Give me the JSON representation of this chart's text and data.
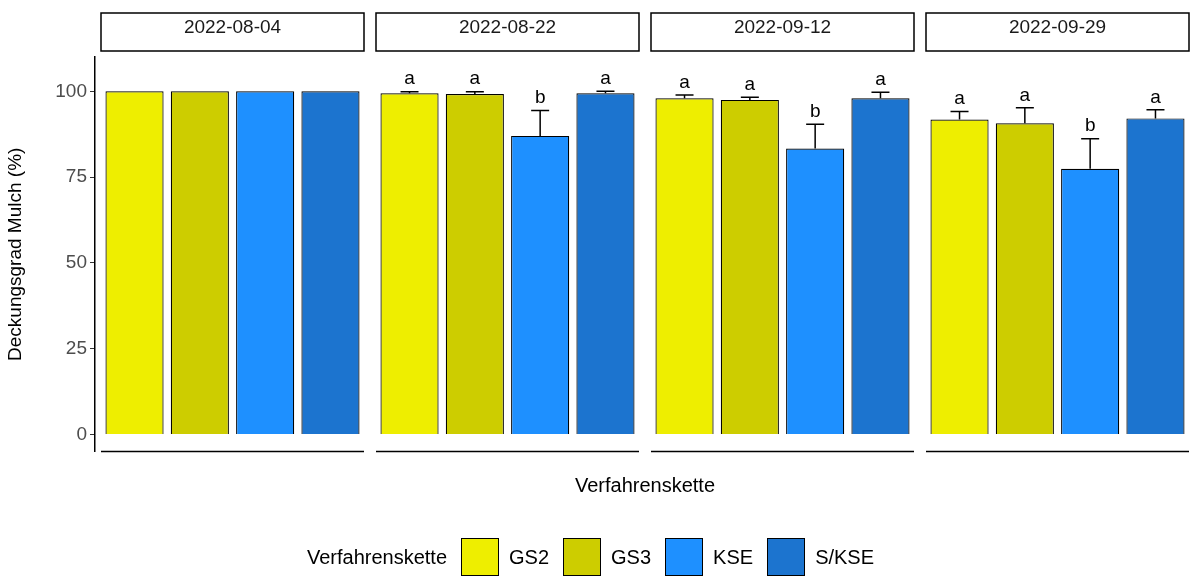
{
  "chart_data": {
    "type": "bar",
    "ylabel": "Deckungsgrad Mulch (%)",
    "xlabel": "Verfahrenskette",
    "legend": "bottom",
    "legend_title": "Verfahrenskette",
    "categories": [
      "2022-08-04",
      "2022-08-22",
      "2022-09-12",
      "2022-09-29"
    ],
    "ylim": [
      -5,
      110
    ],
    "yticks": [
      0,
      25,
      50,
      75,
      100
    ],
    "series": [
      {
        "name": "GS2",
        "color": "#eeee00",
        "values": [
          100,
          99.4,
          98.0,
          91.8
        ],
        "errors": [
          null,
          0.5,
          0.9,
          2.3
        ],
        "value_labels": [
          null,
          "a",
          "a",
          "a"
        ]
      },
      {
        "name": "GS3",
        "color": "#cdcd00",
        "values": [
          100,
          99.2,
          97.5,
          90.7
        ],
        "errors": [
          null,
          0.7,
          0.8,
          4.5
        ],
        "value_labels": [
          null,
          "a",
          "a",
          "a"
        ]
      },
      {
        "name": "KSE",
        "color": "#1e90ff",
        "values": [
          100,
          87.0,
          83.3,
          77.4
        ],
        "errors": [
          null,
          7.4,
          7.1,
          8.8
        ],
        "value_labels": [
          null,
          "b",
          "b",
          "b"
        ]
      },
      {
        "name": "S/KSE",
        "color": "#1c74cf",
        "values": [
          100,
          99.4,
          98.0,
          92.1
        ],
        "errors": [
          null,
          0.6,
          1.7,
          2.5
        ],
        "value_labels": [
          null,
          "a",
          "a",
          "a"
        ]
      }
    ]
  }
}
